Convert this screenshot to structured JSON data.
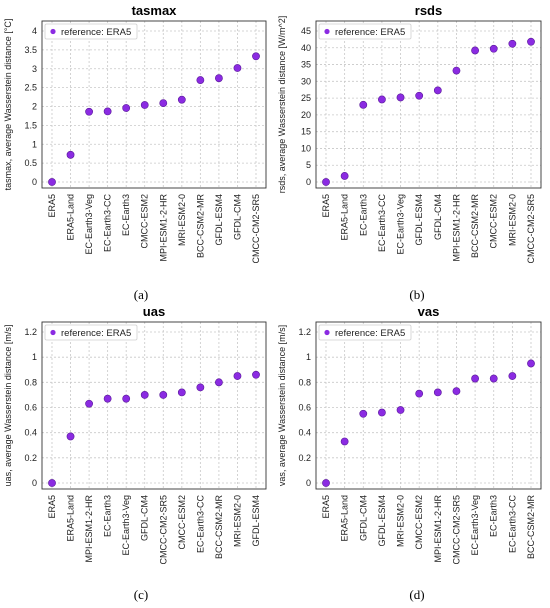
{
  "chart_data": [
    {
      "type": "scatter",
      "panel": "(a)",
      "title": "tasmax",
      "ylabel": "tasmax, average Wasserstein distance [°C]",
      "ylim": [
        0,
        4
      ],
      "yticks": [
        0,
        0.5,
        1,
        1.5,
        2,
        2.5,
        3,
        3.5,
        4
      ],
      "ytick_labels": [
        "0",
        "0.5",
        "1",
        "1.5",
        "2",
        "2.5",
        "3",
        "3.5",
        "4"
      ],
      "legend": "reference: ERA5",
      "legend_position": "top-left",
      "grid": true,
      "color": "#8b2be2",
      "categories": [
        "ERA5",
        "ERA5-Land",
        "EC-Earth3-Veg",
        "EC-Earth3-CC",
        "EC-Earth3",
        "CMCC-ESM2",
        "MPI-ESM1-2-HR",
        "MRI-ESM2-0",
        "BCC-CSM2-MR",
        "GFDL-ESM4",
        "GFDL-CM4",
        "CMCC-CM2-SR5"
      ],
      "values": [
        0.0,
        0.72,
        1.86,
        1.87,
        1.96,
        2.04,
        2.09,
        2.18,
        2.7,
        2.75,
        3.02,
        3.33
      ]
    },
    {
      "type": "scatter",
      "panel": "(b)",
      "title": "rsds",
      "ylabel": "rsds, average Wasserstein distance [W/m^2]",
      "ylim": [
        0,
        45
      ],
      "yticks": [
        0,
        5,
        10,
        15,
        20,
        25,
        30,
        35,
        40,
        45
      ],
      "ytick_labels": [
        "0",
        "5",
        "10",
        "15",
        "20",
        "25",
        "30",
        "35",
        "40",
        "45"
      ],
      "legend": "reference: ERA5",
      "legend_position": "top-left",
      "grid": true,
      "color": "#8b2be2",
      "categories": [
        "ERA5",
        "ERA5-Land",
        "EC-Earth3",
        "EC-Earth3-CC",
        "EC-Earth3-Veg",
        "GFDL-ESM4",
        "GFDL-CM4",
        "MPI-ESM1-2-HR",
        "BCC-CSM2-MR",
        "CMCC-ESM2",
        "MRI-ESM2-0",
        "CMCC-CM2-SR5"
      ],
      "values": [
        0.0,
        1.8,
        23.0,
        24.6,
        25.2,
        25.7,
        27.3,
        33.2,
        39.2,
        39.7,
        41.2,
        41.8
      ]
    },
    {
      "type": "scatter",
      "panel": "(c)",
      "title": "uas",
      "ylabel": "uas, average Wasserstein distance [m/s]",
      "ylim": [
        0,
        1.2
      ],
      "yticks": [
        0,
        0.2,
        0.4,
        0.6,
        0.8,
        1,
        1.2
      ],
      "ytick_labels": [
        "0",
        "0.2",
        "0.4",
        "0.6",
        "0.8",
        "1",
        "1.2"
      ],
      "legend": "reference: ERA5",
      "legend_position": "top-left",
      "grid": true,
      "color": "#8b2be2",
      "categories": [
        "ERA5",
        "ERA5-Land",
        "MPI-ESM1-2-HR",
        "EC-Earth3",
        "EC-Earth3-Veg",
        "GFDL-CM4",
        "CMCC-CM2-SR5",
        "CMCC-ESM2",
        "EC-Earth3-CC",
        "BCC-CSM2-MR",
        "MRI-ESM2-0",
        "GFDL-ESM4"
      ],
      "values": [
        0.0,
        0.37,
        0.63,
        0.67,
        0.67,
        0.7,
        0.7,
        0.72,
        0.76,
        0.8,
        0.85,
        0.86
      ]
    },
    {
      "type": "scatter",
      "panel": "(d)",
      "title": "vas",
      "ylabel": "vas, average Wasserstein distance [m/s]",
      "ylim": [
        0,
        1.2
      ],
      "yticks": [
        0,
        0.2,
        0.4,
        0.6,
        0.8,
        1,
        1.2
      ],
      "ytick_labels": [
        "0",
        "0.2",
        "0.4",
        "0.6",
        "0.8",
        "1",
        "1.2"
      ],
      "legend": "reference: ERA5",
      "legend_position": "top-left",
      "grid": true,
      "color": "#8b2be2",
      "categories": [
        "ERA5",
        "ERA5-Land",
        "GFDL-CM4",
        "GFDL-ESM4",
        "MRI-ESM2-0",
        "CMCC-ESM2",
        "MPI-ESM1-2-HR",
        "CMCC-CM2-SR5",
        "EC-Earth3-Veg",
        "EC-Earth3",
        "EC-Earth3-CC",
        "BCC-CSM2-MR"
      ],
      "values": [
        0.0,
        0.33,
        0.55,
        0.56,
        0.58,
        0.71,
        0.72,
        0.73,
        0.83,
        0.83,
        0.85,
        0.95
      ]
    }
  ]
}
